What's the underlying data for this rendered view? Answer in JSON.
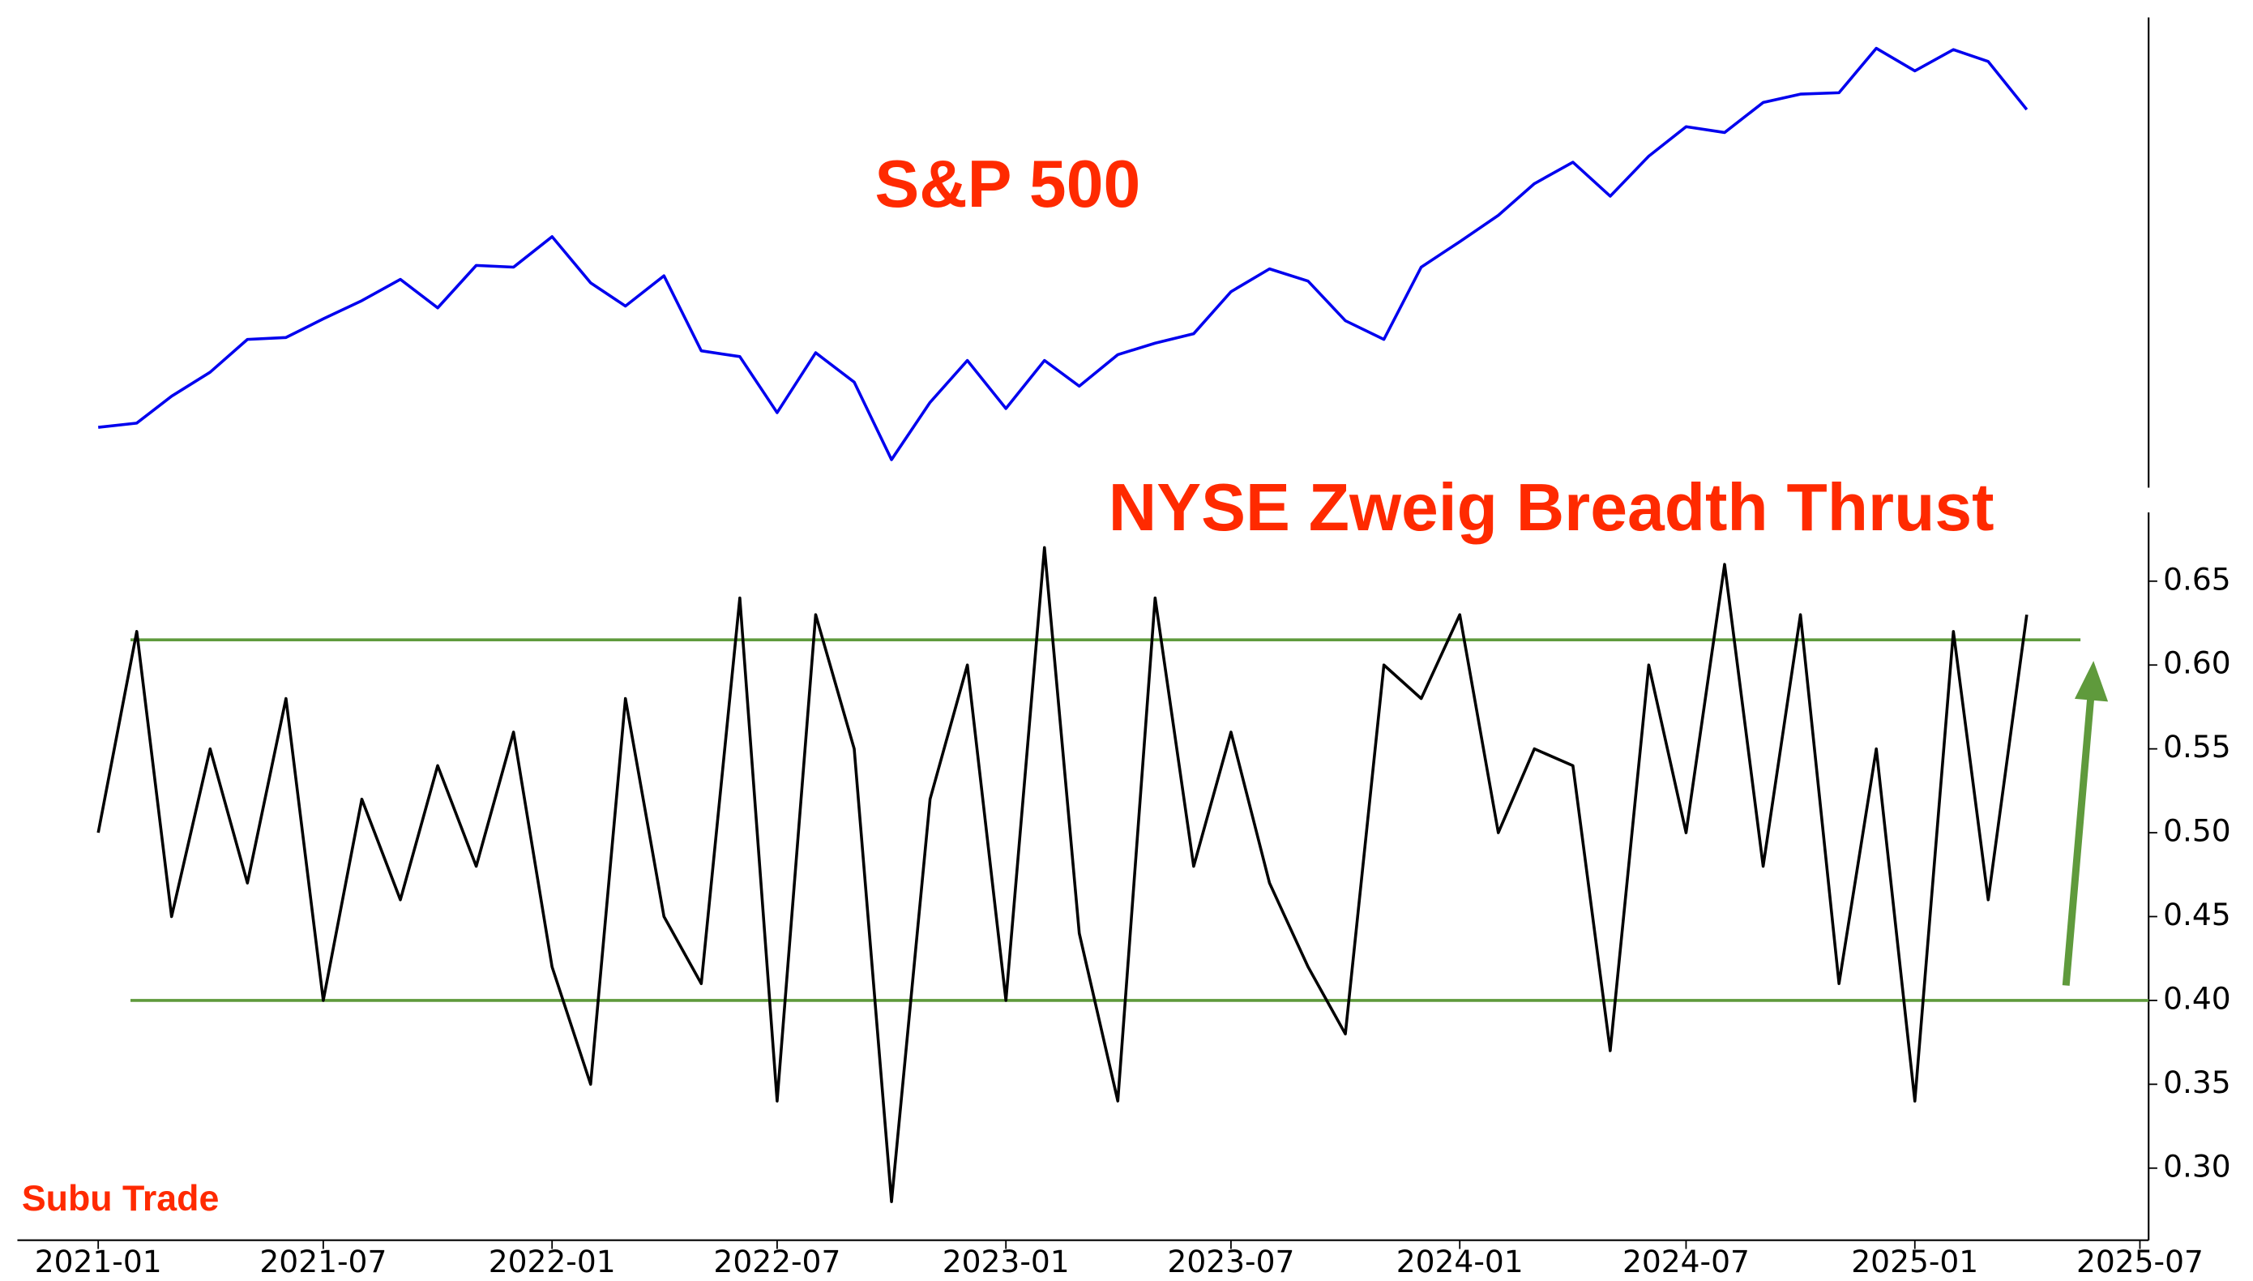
{
  "chart_data": [
    {
      "type": "line",
      "title": "S&P 500",
      "color": "#0000ee",
      "log_scale": true,
      "x": [
        "2021-01",
        "2021-02",
        "2021-03",
        "2021-04",
        "2021-05",
        "2021-06",
        "2021-07",
        "2021-08",
        "2021-09",
        "2021-10",
        "2021-11",
        "2021-12",
        "2022-01",
        "2022-02",
        "2022-03",
        "2022-04",
        "2022-05",
        "2022-06",
        "2022-07",
        "2022-08",
        "2022-09",
        "2022-10",
        "2022-11",
        "2022-12",
        "2023-01",
        "2023-02",
        "2023-03",
        "2023-04",
        "2023-05",
        "2023-06",
        "2023-07",
        "2023-08",
        "2023-09",
        "2023-10",
        "2023-11",
        "2023-12",
        "2024-01",
        "2024-02",
        "2024-03",
        "2024-04",
        "2024-05",
        "2024-06",
        "2024-07",
        "2024-08",
        "2024-09",
        "2024-10",
        "2024-11",
        "2024-12",
        "2025-01",
        "2025-02",
        "2025-03",
        "2025-04"
      ],
      "values": [
        3750,
        3770,
        3900,
        4020,
        4190,
        4200,
        4300,
        4400,
        4520,
        4360,
        4600,
        4590,
        4770,
        4500,
        4370,
        4540,
        4130,
        4100,
        3820,
        4120,
        3970,
        3600,
        3870,
        4080,
        3840,
        4080,
        3950,
        4110,
        4170,
        4220,
        4450,
        4580,
        4510,
        4290,
        4190,
        4590,
        4740,
        4900,
        5100,
        5240,
        5020,
        5280,
        5480,
        5440,
        5650,
        5710,
        5720,
        6050,
        5880,
        6040,
        5950,
        5600
      ],
      "xlim": [
        "2020-10-28",
        "2025-07-08"
      ],
      "ylim": [
        3475,
        6290
      ]
    },
    {
      "type": "line",
      "title": "NYSE Zweig Breadth Thrust",
      "color": "#000000",
      "x": [
        "2021-01",
        "2021-02",
        "2021-03",
        "2021-04",
        "2021-05",
        "2021-06",
        "2021-07",
        "2021-08",
        "2021-09",
        "2021-10",
        "2021-11",
        "2021-12",
        "2022-01",
        "2022-02",
        "2022-03",
        "2022-04",
        "2022-05",
        "2022-06",
        "2022-07",
        "2022-08",
        "2022-09",
        "2022-10",
        "2022-11",
        "2022-12",
        "2023-01",
        "2023-02",
        "2023-03",
        "2023-04",
        "2023-05",
        "2023-06",
        "2023-07",
        "2023-08",
        "2023-09",
        "2023-10",
        "2023-11",
        "2023-12",
        "2024-01",
        "2024-02",
        "2024-03",
        "2024-04",
        "2024-05",
        "2024-06",
        "2024-07",
        "2024-08",
        "2024-09",
        "2024-10",
        "2024-11",
        "2024-12",
        "2025-01",
        "2025-02",
        "2025-03",
        "2025-04"
      ],
      "values": [
        0.5,
        0.62,
        0.45,
        0.55,
        0.47,
        0.58,
        0.4,
        0.52,
        0.46,
        0.54,
        0.48,
        0.56,
        0.42,
        0.35,
        0.58,
        0.45,
        0.41,
        0.64,
        0.34,
        0.63,
        0.55,
        0.28,
        0.52,
        0.6,
        0.4,
        0.67,
        0.44,
        0.34,
        0.64,
        0.48,
        0.56,
        0.47,
        0.42,
        0.38,
        0.6,
        0.58,
        0.63,
        0.5,
        0.55,
        0.54,
        0.37,
        0.6,
        0.5,
        0.66,
        0.48,
        0.63,
        0.41,
        0.55,
        0.34,
        0.62,
        0.46,
        0.63
      ],
      "xlim": [
        "2020-10-28",
        "2025-07-08"
      ],
      "ylim": [
        0.257,
        0.691
      ],
      "xticks": [
        "2021-01",
        "2021-07",
        "2022-01",
        "2022-07",
        "2023-01",
        "2023-07",
        "2024-01",
        "2024-07",
        "2025-01",
        "2025-07"
      ],
      "yticks": [
        {
          "value": 0.3,
          "label": "0.30"
        },
        {
          "value": 0.35,
          "label": "0.35"
        },
        {
          "value": 0.4,
          "label": "0.40"
        },
        {
          "value": 0.45,
          "label": "0.45"
        },
        {
          "value": 0.5,
          "label": "0.50"
        },
        {
          "value": 0.55,
          "label": "0.55"
        },
        {
          "value": 0.6,
          "label": "0.60"
        },
        {
          "value": 0.65,
          "label": "0.65"
        }
      ],
      "hlines": [
        {
          "value": 0.615,
          "color": "#5f9a3c"
        },
        {
          "value": 0.4,
          "color": "#5f9a3c"
        }
      ]
    }
  ],
  "watermark": "Subu Trade"
}
